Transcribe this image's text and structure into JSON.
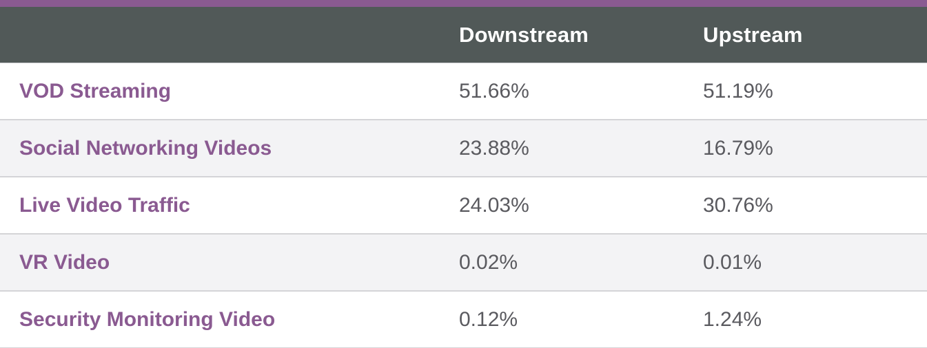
{
  "colors": {
    "accent": "#8a5a91",
    "header_bg": "#515958",
    "label_text": "#8a5a91",
    "value_text": "#5a5a5f",
    "row_alt": "#f3f3f5"
  },
  "table": {
    "headers": {
      "label": "",
      "downstream": "Downstream",
      "upstream": "Upstream"
    },
    "rows": [
      {
        "label": "VOD Streaming",
        "downstream": "51.66%",
        "upstream": "51.19%"
      },
      {
        "label": "Social Networking Videos",
        "downstream": "23.88%",
        "upstream": "16.79%"
      },
      {
        "label": "Live Video Traffic",
        "downstream": "24.03%",
        "upstream": "30.76%"
      },
      {
        "label": "VR Video",
        "downstream": "0.02%",
        "upstream": "0.01%"
      },
      {
        "label": "Security Monitoring Video",
        "downstream": "0.12%",
        "upstream": "1.24%"
      }
    ]
  }
}
